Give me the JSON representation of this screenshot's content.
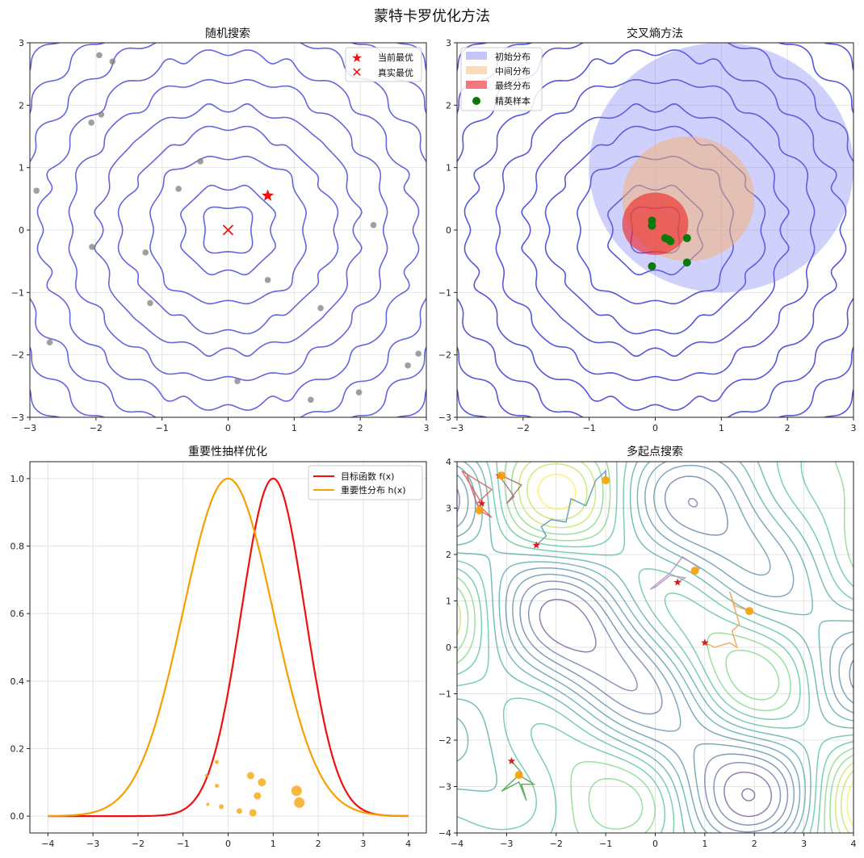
{
  "figure": {
    "title": "蒙特卡罗优化方法"
  },
  "chart_data": [
    {
      "id": "random-search",
      "type": "contour",
      "title": "随机搜索",
      "xlim": [
        -3,
        3
      ],
      "ylim": [
        -3,
        3
      ],
      "xticks": [
        "−3",
        "−2",
        "−1",
        "0",
        "1",
        "2",
        "3"
      ],
      "yticks": [
        "3",
        "2",
        "1",
        "0",
        "−1",
        "−2",
        "−3"
      ],
      "contour_color": "#4b4bd6",
      "samples": [
        [
          -2.9,
          0.63
        ],
        [
          -1.95,
          2.8
        ],
        [
          -1.75,
          2.7
        ],
        [
          -2.07,
          1.72
        ],
        [
          -1.92,
          1.85
        ],
        [
          -0.42,
          1.1
        ],
        [
          -0.75,
          0.66
        ],
        [
          -2.06,
          -0.27
        ],
        [
          -1.25,
          -0.36
        ],
        [
          -1.18,
          -1.17
        ],
        [
          -2.7,
          -1.8
        ],
        [
          0.6,
          -0.8
        ],
        [
          1.4,
          -1.25
        ],
        [
          0.14,
          -2.42
        ],
        [
          1.25,
          -2.72
        ],
        [
          1.98,
          -2.6
        ],
        [
          2.72,
          -2.17
        ],
        [
          2.88,
          -1.98
        ],
        [
          2.2,
          0.08
        ]
      ],
      "current_best": [
        0.6,
        0.55
      ],
      "true_best": [
        0,
        0
      ],
      "legend": [
        "当前最优",
        "真实最优"
      ]
    },
    {
      "id": "cross-entropy",
      "type": "contour",
      "title": "交叉熵方法",
      "xlim": [
        -3,
        3
      ],
      "ylim": [
        -3,
        3
      ],
      "xticks": [
        "−3",
        "−2",
        "−1",
        "0",
        "1",
        "2",
        "3"
      ],
      "yticks": [
        "3",
        "2",
        "1",
        "0",
        "−1",
        "−2",
        "−3"
      ],
      "distributions": [
        {
          "name": "初始分布",
          "center": [
            1.0,
            1.0
          ],
          "radius": 2.0,
          "color": "#6f6ff5"
        },
        {
          "name": "中间分布",
          "center": [
            0.5,
            0.5
          ],
          "radius": 1.0,
          "color": "#f5b06a"
        },
        {
          "name": "最终分布",
          "center": [
            0.0,
            0.1
          ],
          "radius": 0.5,
          "color": "#ef2020"
        }
      ],
      "elite_samples": [
        [
          -0.05,
          0.15
        ],
        [
          -0.05,
          0.07
        ],
        [
          0.15,
          -0.13
        ],
        [
          0.2,
          -0.15
        ],
        [
          0.23,
          -0.18
        ],
        [
          0.48,
          -0.13
        ],
        [
          -0.05,
          -0.58
        ],
        [
          0.48,
          -0.52
        ]
      ],
      "legend": [
        "初始分布",
        "中间分布",
        "最终分布",
        "精英样本"
      ]
    },
    {
      "id": "importance-sampling",
      "type": "line",
      "title": "重要性抽样优化",
      "xlim": [
        -4,
        4
      ],
      "ylim": [
        0,
        1.0
      ],
      "xticks": [
        "−4",
        "−3",
        "−2",
        "−1",
        "0",
        "1",
        "2",
        "3",
        "4"
      ],
      "yticks": [
        "0.0",
        "0.2",
        "0.4",
        "0.6",
        "0.8",
        "1.0"
      ],
      "series": [
        {
          "name": "目标函数 f(x)",
          "formula": "exp(-(x-1)^2)",
          "color": "#ee1111"
        },
        {
          "name": "重要性分布 h(x)",
          "formula": "exp(-x^2/2)",
          "color": "#f5a000"
        }
      ],
      "samples": [
        {
          "x": -0.25,
          "y": 0.16,
          "size": 2.5
        },
        {
          "x": -0.48,
          "y": 0.12,
          "size": 2.0
        },
        {
          "x": -0.25,
          "y": 0.09,
          "size": 2.5
        },
        {
          "x": -0.45,
          "y": 0.035,
          "size": 2.0
        },
        {
          "x": -0.15,
          "y": 0.028,
          "size": 3.0
        },
        {
          "x": 0.25,
          "y": 0.015,
          "size": 3.5
        },
        {
          "x": 0.5,
          "y": 0.12,
          "size": 4.5
        },
        {
          "x": 0.75,
          "y": 0.1,
          "size": 5.0
        },
        {
          "x": 0.65,
          "y": 0.06,
          "size": 4.5
        },
        {
          "x": 0.55,
          "y": 0.01,
          "size": 4.5
        },
        {
          "x": 1.52,
          "y": 0.075,
          "size": 6.5
        },
        {
          "x": 1.58,
          "y": 0.04,
          "size": 6.5
        }
      ],
      "legend": [
        "目标函数 f(x)",
        "重要性分布 h(x)"
      ]
    },
    {
      "id": "multi-start",
      "type": "contour",
      "title": "多起点搜索",
      "xlim": [
        -4,
        4
      ],
      "ylim": [
        -4,
        4
      ],
      "xticks": [
        "−4",
        "−3",
        "−2",
        "−1",
        "0",
        "1",
        "2",
        "3",
        "4"
      ],
      "yticks": [
        "4",
        "3",
        "2",
        "1",
        "0",
        "−1",
        "−2",
        "−3",
        "−4"
      ],
      "paths": [
        {
          "color": "#d06060",
          "start": [
            -3.5,
            3.1
          ],
          "end": [
            -3.55,
            2.95
          ],
          "points": [
            [
              -3.5,
              3.1
            ],
            [
              -3.9,
              3.8
            ],
            [
              -3.3,
              3.4
            ],
            [
              -3.6,
              3.1
            ],
            [
              -3.3,
              2.8
            ],
            [
              -3.55,
              2.95
            ],
            [
              -3.8,
              3.7
            ]
          ]
        },
        {
          "color": "#a07070",
          "start": [
            -3.15,
            3.7
          ],
          "end": [
            -3.1,
            3.7
          ],
          "points": [
            [
              -3.15,
              3.7
            ],
            [
              -2.85,
              3.25
            ],
            [
              -3.0,
              3.1
            ],
            [
              -2.7,
              3.5
            ],
            [
              -3.1,
              3.7
            ]
          ]
        },
        {
          "color": "#5a8fb0",
          "start": [
            -2.4,
            2.2
          ],
          "end": [
            -1.0,
            3.6
          ],
          "points": [
            [
              -2.4,
              2.2
            ],
            [
              -2.2,
              2.4
            ],
            [
              -2.3,
              2.6
            ],
            [
              -2.1,
              2.75
            ],
            [
              -1.8,
              2.7
            ],
            [
              -1.7,
              3.2
            ],
            [
              -1.4,
              3.05
            ],
            [
              -1.2,
              3.6
            ],
            [
              -1.0,
              3.8
            ],
            [
              -1.0,
              3.6
            ]
          ]
        },
        {
          "color": "#b090c0",
          "start": [
            0.45,
            1.4
          ],
          "end": [
            0.8,
            1.65
          ],
          "points": [
            [
              0.45,
              1.4
            ],
            [
              0.6,
              1.5
            ],
            [
              0.3,
              1.55
            ],
            [
              0.0,
              1.3
            ],
            [
              -0.1,
              1.25
            ],
            [
              0.3,
              1.6
            ],
            [
              0.55,
              1.95
            ],
            [
              0.9,
              1.7
            ],
            [
              0.8,
              1.65
            ]
          ]
        },
        {
          "color": "#f0a050",
          "start": [
            1.0,
            0.1
          ],
          "end": [
            1.9,
            0.78
          ],
          "points": [
            [
              1.0,
              0.1
            ],
            [
              1.2,
              0.0
            ],
            [
              1.5,
              0.1
            ],
            [
              1.65,
              0.0
            ],
            [
              1.55,
              0.35
            ],
            [
              1.7,
              0.5
            ],
            [
              1.5,
              1.2
            ],
            [
              1.6,
              0.9
            ],
            [
              1.9,
              0.78
            ]
          ]
        },
        {
          "color": "#4aa050",
          "start": [
            -2.9,
            -2.45
          ],
          "end": [
            -2.75,
            -2.75
          ],
          "points": [
            [
              -2.9,
              -2.45
            ],
            [
              -2.7,
              -2.7
            ],
            [
              -3.1,
              -3.1
            ],
            [
              -2.75,
              -2.9
            ],
            [
              -2.6,
              -3.3
            ],
            [
              -2.7,
              -2.95
            ],
            [
              -2.45,
              -2.95
            ],
            [
              -2.75,
              -2.75
            ]
          ]
        }
      ]
    }
  ]
}
